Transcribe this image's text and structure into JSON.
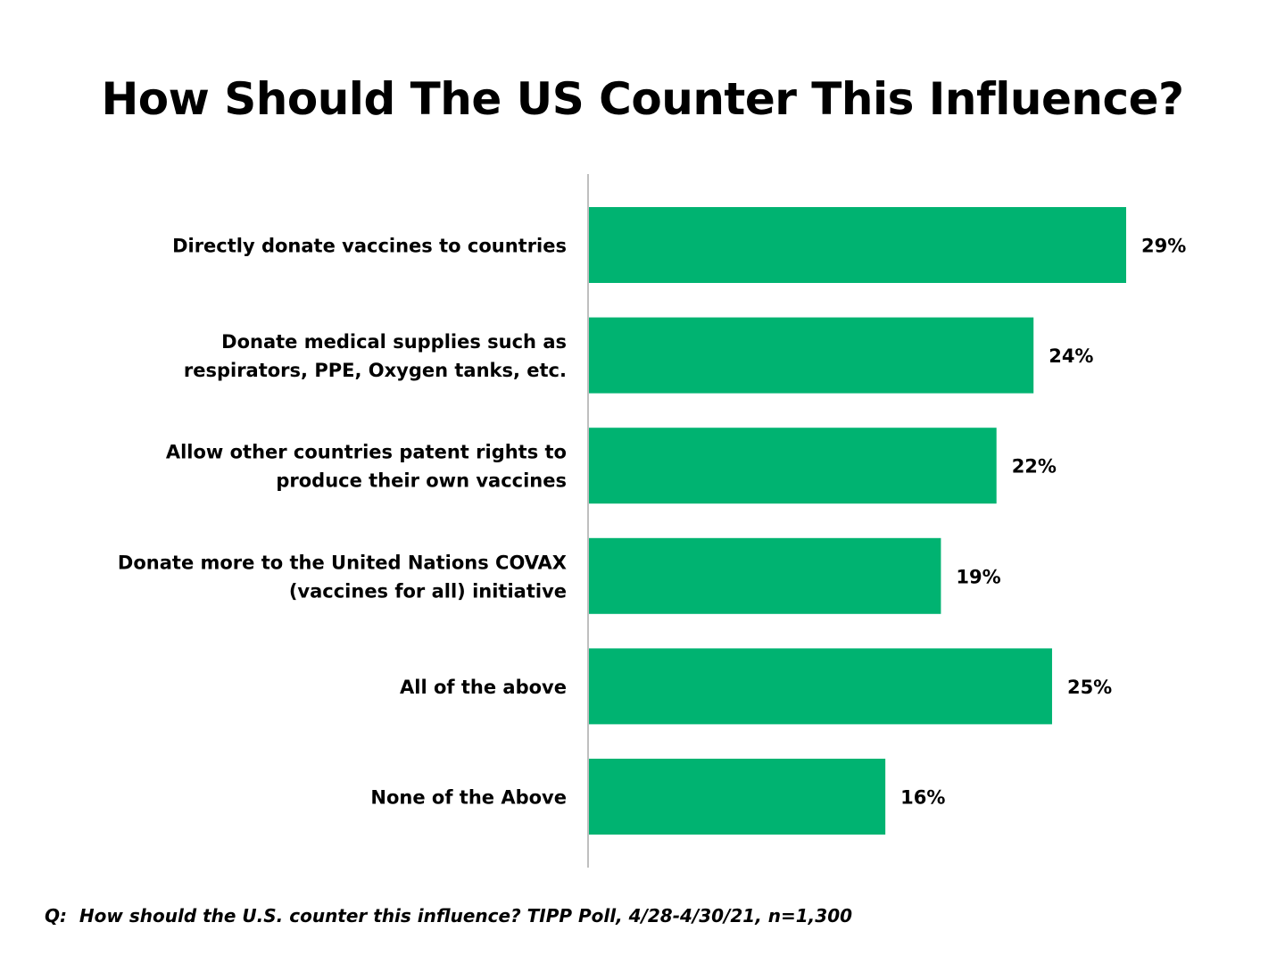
{
  "title": "How Should The US Counter This Influence?",
  "footnote": "Q:  How should the U.S. counter this influence? TIPP Poll, 4/28-4/30/21, n=1,300",
  "colors": {
    "bar": "#00b371",
    "axis": "#bfbfbf",
    "text": "#000000"
  },
  "chart_data": {
    "type": "bar",
    "orientation": "horizontal",
    "title": "How Should The US Counter This Influence?",
    "categories": [
      [
        "Directly donate vaccines to countries"
      ],
      [
        "Donate medical supplies such as",
        "respirators, PPE, Oxygen tanks, etc."
      ],
      [
        "Allow other countries patent rights to",
        "produce their own vaccines"
      ],
      [
        "Donate more to the United Nations COVAX",
        "(vaccines for all) initiative"
      ],
      [
        "All of the above"
      ],
      [
        "None of the Above"
      ]
    ],
    "values": [
      29,
      24,
      22,
      19,
      25,
      16
    ],
    "value_labels": [
      "29%",
      "24%",
      "22%",
      "19%",
      "25%",
      "16%"
    ],
    "unit": "%",
    "xlim": [
      0,
      30
    ],
    "grid": false,
    "legend": "none"
  }
}
